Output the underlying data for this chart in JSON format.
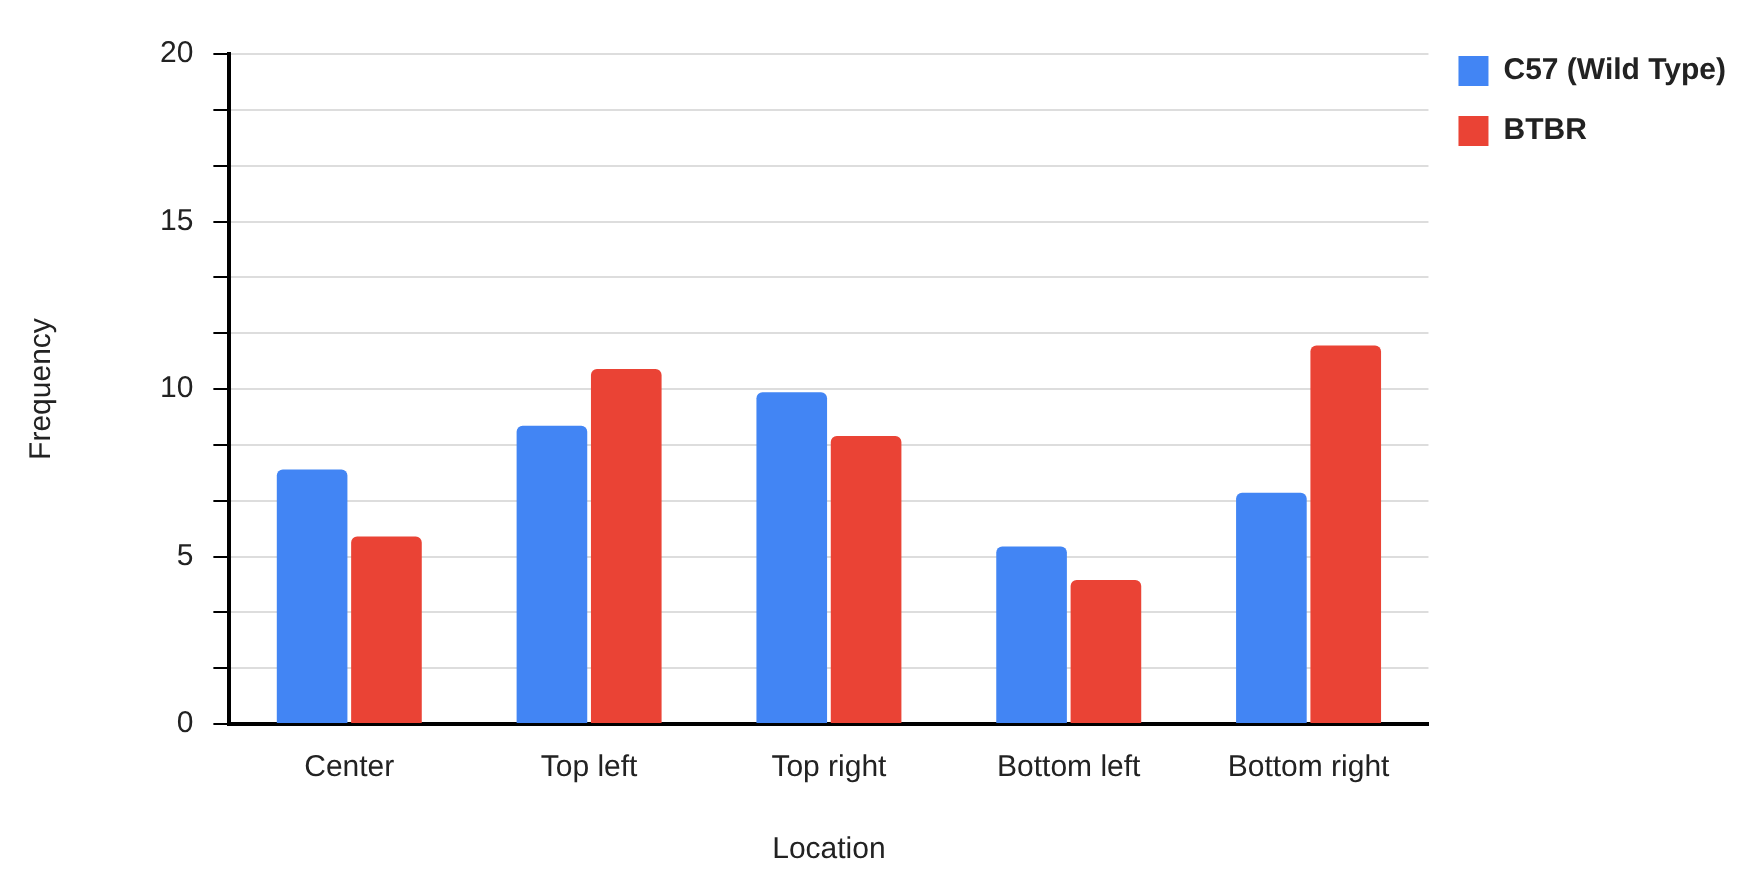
{
  "chart_data": {
    "type": "bar",
    "xlabel": "Location",
    "ylabel": "Frequency",
    "categories": [
      "Center",
      "Top left",
      "Top right",
      "Bottom left",
      "Bottom right"
    ],
    "series": [
      {
        "name": "C57 (Wild Type)",
        "color": "#4285f4",
        "values": [
          7.6,
          8.9,
          9.9,
          5.3,
          6.9
        ]
      },
      {
        "name": "BTBR",
        "color": "#ea4335",
        "values": [
          5.6,
          10.6,
          8.6,
          4.3,
          11.3
        ]
      }
    ],
    "ylim": [
      0,
      20
    ],
    "yticks": [
      0,
      {
        "value": 1.667,
        "label": null
      },
      {
        "value": 3.333,
        "label": null
      },
      5,
      {
        "value": 6.667,
        "label": null
      },
      {
        "value": 8.333,
        "label": null
      },
      10,
      {
        "value": 11.667,
        "label": null
      },
      {
        "value": 13.333,
        "label": null
      },
      15,
      {
        "value": 16.667,
        "label": null
      },
      {
        "value": 18.333,
        "label": null
      },
      20
    ],
    "grid": "y",
    "legend": "top right"
  }
}
